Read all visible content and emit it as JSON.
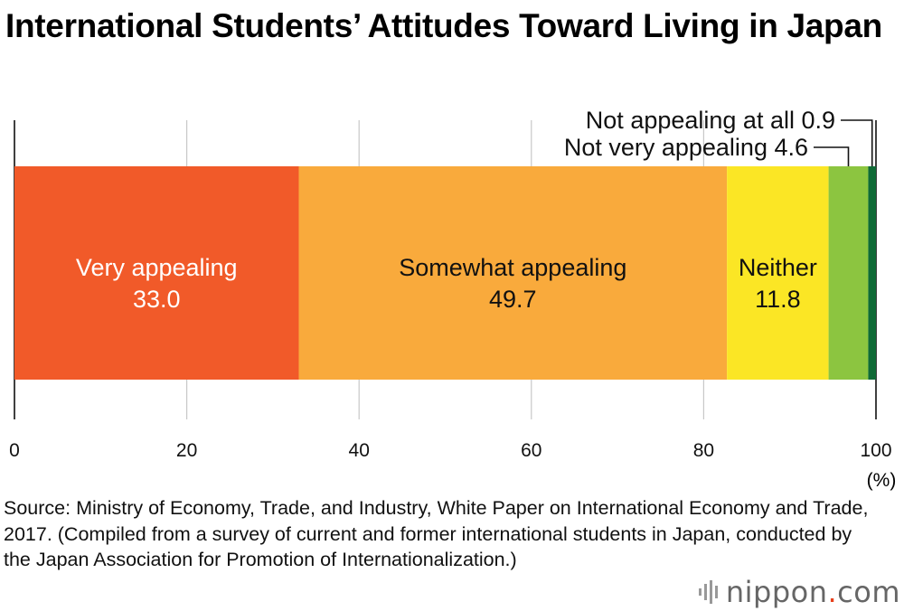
{
  "title": "International Students’ Attitudes Toward Living in Japan",
  "source": "Source: Ministry of Economy, Trade, and Industry, White Paper on International Economy and Trade, 2017. (Compiled from a survey of current and former international students in Japan, conducted by the Japan Association for Promotion of Internationalization.)",
  "logo": {
    "name": "nippon",
    "dot": ".",
    "suffix": "com"
  },
  "chart_data": {
    "type": "bar",
    "orientation": "horizontal-stacked",
    "title": "International Students’ Attitudes Toward Living in Japan",
    "unit_label": "(%)",
    "xlim": [
      0,
      100
    ],
    "ticks": [
      "0",
      "20",
      "40",
      "60",
      "80",
      "100"
    ],
    "grid": true,
    "series": [
      {
        "name": "Very appealing",
        "value": 33.0,
        "value_label": "33.0",
        "color": "#f15a29",
        "label_color": "#ffffff"
      },
      {
        "name": "Somewhat appealing",
        "value": 49.7,
        "value_label": "49.7",
        "color": "#f9aa3c",
        "label_color": "#111111"
      },
      {
        "name": "Neither",
        "value": 11.8,
        "value_label": "11.8",
        "color": "#fbe625",
        "label_color": "#111111"
      },
      {
        "name": "Not very appealing",
        "value": 4.6,
        "value_label": "4.6",
        "color": "#8cc540",
        "label_color": "#111111"
      },
      {
        "name": "Not appealing at all",
        "value": 0.9,
        "value_label": "0.9",
        "color": "#0f6a36",
        "label_color": "#111111"
      }
    ],
    "callouts": [
      {
        "series": "Not very appealing",
        "text": "Not very appealing  4.6"
      },
      {
        "series": "Not appealing at all",
        "text": "Not appealing at all  0.9"
      }
    ]
  }
}
